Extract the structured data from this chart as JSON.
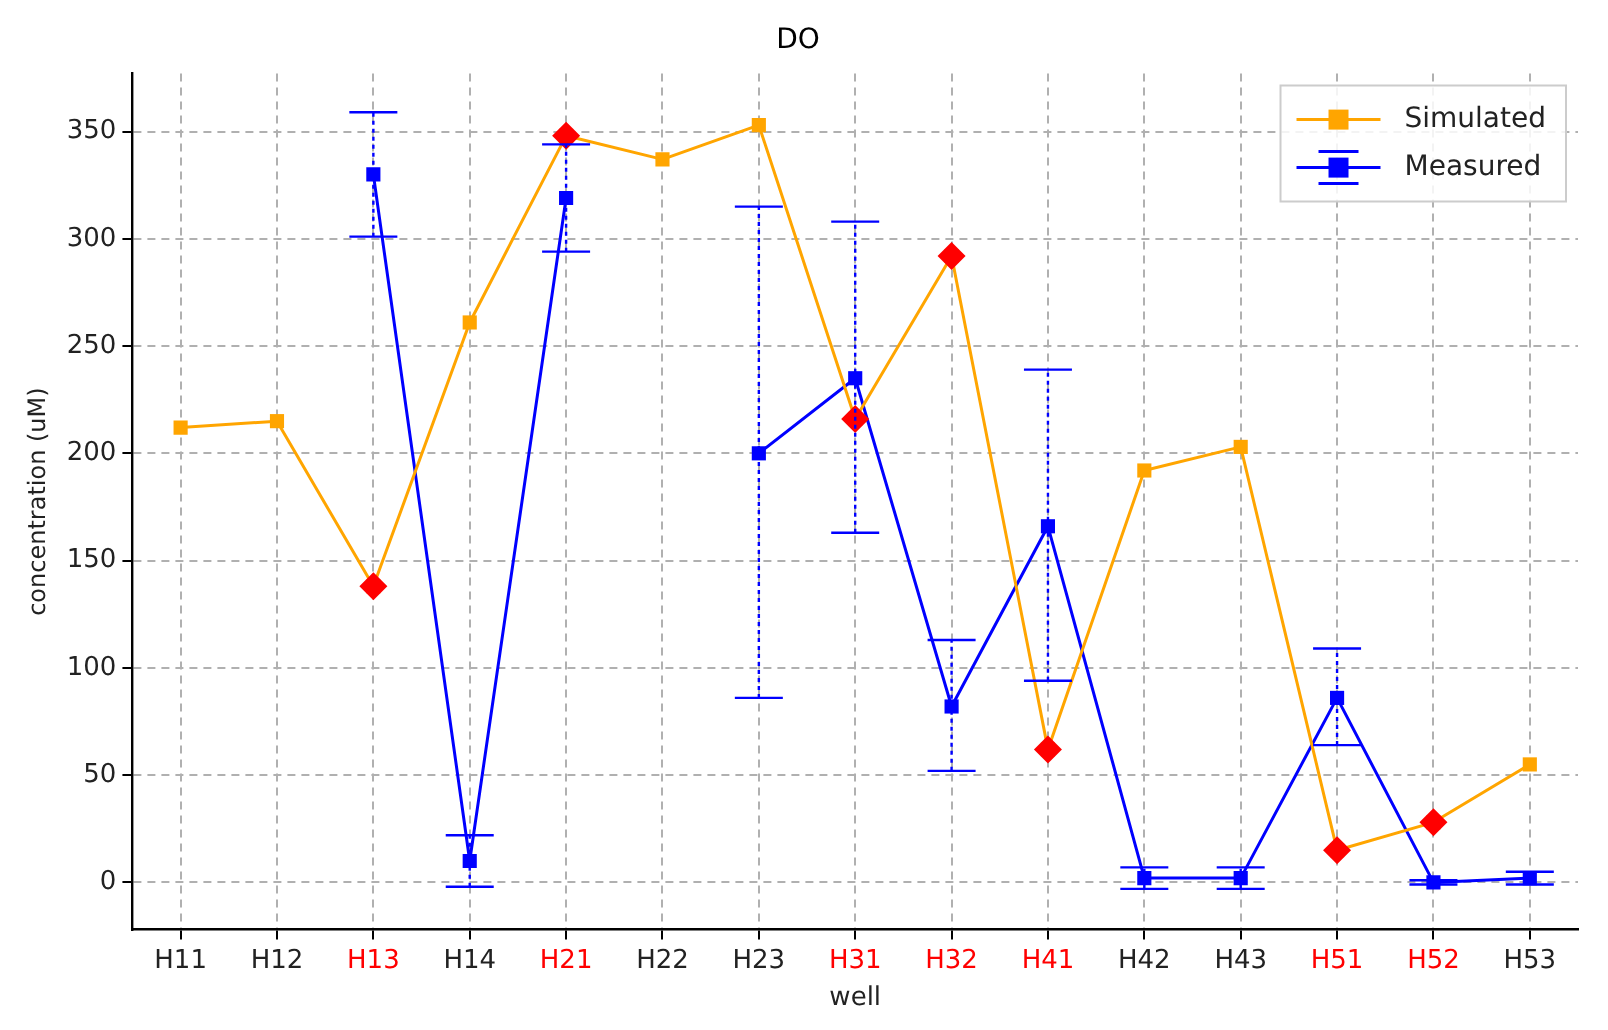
{
  "chart_data": {
    "type": "line",
    "title": "DO",
    "xlabel": "well",
    "ylabel": "concentration (uM)",
    "categories": [
      "H11",
      "H12",
      "H13",
      "H14",
      "H21",
      "H22",
      "H23",
      "H31",
      "H32",
      "H41",
      "H42",
      "H43",
      "H51",
      "H52",
      "H53"
    ],
    "series": [
      {
        "name": "Simulated",
        "color": "#ffa500",
        "marker": "square",
        "values": [
          212,
          215,
          138,
          261,
          348,
          337,
          353,
          216,
          292,
          62,
          192,
          203,
          15,
          28,
          55
        ]
      },
      {
        "name": "Measured",
        "color": "#0000ff",
        "marker": "square",
        "values": [
          null,
          null,
          330,
          10,
          319,
          null,
          200,
          235,
          82,
          166,
          2,
          2,
          86,
          0,
          2
        ],
        "errors": [
          null,
          null,
          29,
          12,
          25,
          null,
          [
            86,
            315
          ],
          [
            163,
            308
          ],
          [
            52,
            113
          ],
          [
            94,
            239
          ],
          5,
          5,
          [
            64,
            109
          ],
          1,
          3
        ]
      },
      {
        "type": "scatter",
        "color": "#ff0000",
        "marker": "diamond",
        "x": [
          "H13",
          "H21",
          "H31",
          "H32",
          "H41",
          "H51",
          "H52"
        ],
        "values": [
          138,
          348,
          216,
          292,
          62,
          15,
          28
        ]
      }
    ],
    "ylim": [
      -22,
      377
    ],
    "yticks": [
      0,
      50,
      100,
      150,
      200,
      250,
      300,
      350
    ],
    "grid": true,
    "legend": "top right"
  }
}
